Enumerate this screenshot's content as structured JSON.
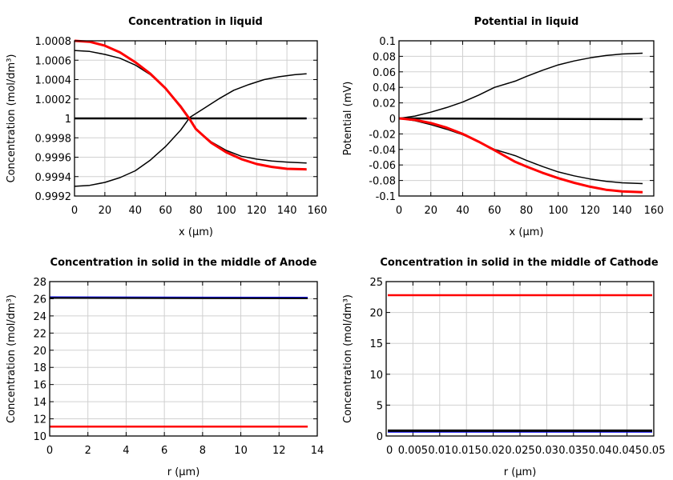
{
  "chart_data": [
    {
      "type": "line",
      "title": "Concentration in liquid",
      "xlabel": "x (µm)",
      "ylabel": "Concentration (mol/dm³)",
      "xlim": [
        0,
        160
      ],
      "ylim": [
        0.9992,
        1.0008
      ],
      "xticks": [
        "0",
        "20",
        "40",
        "60",
        "80",
        "100",
        "120",
        "140",
        "160"
      ],
      "xtick_values": [
        0,
        20,
        40,
        60,
        80,
        100,
        120,
        140,
        160
      ],
      "yticks": [
        "0.9992",
        "0.9994",
        "0.9996",
        "0.9998",
        "1",
        "1.0002",
        "1.0004",
        "1.0006",
        "1.0008"
      ],
      "ytick_values": [
        0.9992,
        0.9994,
        0.9996,
        0.9998,
        1,
        1.0002,
        1.0004,
        1.0006,
        1.0008
      ],
      "grid": true,
      "series": [
        {
          "color": "#0000ff",
          "width": 1.5,
          "x": [
            0,
            153
          ],
          "y": [
            1,
            1
          ]
        },
        {
          "color": "#000000",
          "width": 2.5,
          "x": [
            0,
            153
          ],
          "y": [
            1,
            1
          ]
        },
        {
          "color": "#000000",
          "width": 1.5,
          "x": [
            0,
            10,
            20,
            30,
            40,
            50,
            60,
            70,
            76,
            80,
            90,
            100,
            110,
            120,
            130,
            140,
            153
          ],
          "y": [
            1.0007,
            1.00069,
            1.00066,
            1.00062,
            1.00055,
            1.00045,
            1.00031,
            1.00013,
            1.0,
            0.99989,
            0.99976,
            0.99967,
            0.99961,
            0.99958,
            0.99956,
            0.99955,
            0.99954
          ]
        },
        {
          "color": "#000000",
          "width": 1.5,
          "x": [
            0,
            10,
            20,
            30,
            40,
            50,
            60,
            70,
            76,
            85,
            95,
            105,
            115,
            125,
            135,
            145,
            153
          ],
          "y": [
            0.9993,
            0.99931,
            0.99934,
            0.99939,
            0.99946,
            0.99957,
            0.99971,
            0.99988,
            1.00001,
            1.0001,
            1.0002,
            1.00029,
            1.00035,
            1.0004,
            1.00043,
            1.00045,
            1.00046
          ]
        },
        {
          "color": "#ff0000",
          "width": 3,
          "x": [
            0,
            10,
            20,
            30,
            40,
            50,
            60,
            70,
            76,
            80,
            90,
            100,
            110,
            120,
            130,
            140,
            153
          ],
          "y": [
            1.0008,
            1.00079,
            1.00075,
            1.00068,
            1.00058,
            1.00046,
            1.00031,
            1.00012,
            0.99999,
            0.99989,
            0.99975,
            0.99965,
            0.99958,
            0.99953,
            0.9995,
            0.99948,
            0.999475
          ]
        }
      ]
    },
    {
      "type": "line",
      "title": "Potential in liquid",
      "xlabel": "x (µm)",
      "ylabel": "Potential (mV)",
      "xlim": [
        0,
        160
      ],
      "ylim": [
        -0.1,
        0.1
      ],
      "xticks": [
        "0",
        "20",
        "40",
        "60",
        "80",
        "100",
        "120",
        "140",
        "160"
      ],
      "xtick_values": [
        0,
        20,
        40,
        60,
        80,
        100,
        120,
        140,
        160
      ],
      "yticks": [
        "-0.1",
        "-0.08",
        "-0.06",
        "-0.04",
        "-0.02",
        "0",
        "0.02",
        "0.04",
        "0.06",
        "0.08",
        "0.1"
      ],
      "ytick_values": [
        -0.1,
        -0.08,
        -0.06,
        -0.04,
        -0.02,
        0,
        0.02,
        0.04,
        0.06,
        0.08,
        0.1
      ],
      "grid": true,
      "series": [
        {
          "color": "#000000",
          "width": 2.5,
          "x": [
            0,
            153
          ],
          "y": [
            0,
            -0.001
          ]
        },
        {
          "color": "#000000",
          "width": 1.5,
          "x": [
            0,
            10,
            20,
            30,
            40,
            50,
            60,
            73,
            80,
            90,
            100,
            110,
            120,
            130,
            140,
            153
          ],
          "y": [
            0,
            0.003,
            0.008,
            0.014,
            0.021,
            0.03,
            0.04,
            0.048,
            0.054,
            0.062,
            0.069,
            0.074,
            0.078,
            0.081,
            0.083,
            0.084
          ]
        },
        {
          "color": "#000000",
          "width": 1.5,
          "x": [
            0,
            10,
            20,
            30,
            40,
            50,
            60,
            73,
            80,
            90,
            100,
            110,
            120,
            130,
            140,
            153
          ],
          "y": [
            0,
            -0.003,
            -0.008,
            -0.014,
            -0.021,
            -0.03,
            -0.04,
            -0.048,
            -0.054,
            -0.062,
            -0.069,
            -0.074,
            -0.078,
            -0.081,
            -0.083,
            -0.084
          ]
        },
        {
          "color": "#ff0000",
          "width": 3,
          "x": [
            0,
            10,
            20,
            30,
            40,
            50,
            60,
            73,
            80,
            90,
            100,
            110,
            120,
            130,
            140,
            153
          ],
          "y": [
            0,
            -0.002,
            -0.006,
            -0.012,
            -0.02,
            -0.03,
            -0.041,
            -0.056,
            -0.062,
            -0.07,
            -0.077,
            -0.083,
            -0.088,
            -0.092,
            -0.094,
            -0.095
          ]
        }
      ]
    },
    {
      "type": "line",
      "title": "Concentration in solid in the middle of Anode",
      "xlabel": "r (µm)",
      "ylabel": "Concentration (mol/dm³)",
      "xlim": [
        0,
        14
      ],
      "ylim": [
        10,
        28
      ],
      "xticks": [
        "0",
        "2",
        "4",
        "6",
        "8",
        "10",
        "12",
        "14"
      ],
      "xtick_values": [
        0,
        2,
        4,
        6,
        8,
        10,
        12,
        14
      ],
      "yticks": [
        "10",
        "12",
        "14",
        "16",
        "18",
        "20",
        "22",
        "24",
        "26",
        "28"
      ],
      "ytick_values": [
        10,
        12,
        14,
        16,
        18,
        20,
        22,
        24,
        26,
        28
      ],
      "grid": true,
      "series": [
        {
          "color": "#0000ff",
          "width": 1.5,
          "x": [
            0,
            13.5
          ],
          "y": [
            26.2,
            26.15
          ]
        },
        {
          "color": "#000000",
          "width": 2,
          "x": [
            0,
            13.5
          ],
          "y": [
            26.1,
            26.05
          ]
        },
        {
          "color": "#ff0000",
          "width": 2.5,
          "x": [
            0,
            13.5
          ],
          "y": [
            11.1,
            11.1
          ]
        }
      ]
    },
    {
      "type": "line",
      "title": "Concentration in solid in the middle of Cathode",
      "xlabel": "r (µm)",
      "ylabel": "Concentration (mol/dm³)",
      "xlim": [
        0,
        0.05
      ],
      "ylim": [
        0,
        25
      ],
      "xticks": [
        "0",
        "0.005",
        "0.01",
        "0.015",
        "0.02",
        "0.025",
        "0.03",
        "0.035",
        "0.04",
        "0.045",
        "0.05"
      ],
      "xtick_values": [
        0,
        0.005,
        0.01,
        0.015,
        0.02,
        0.025,
        0.03,
        0.035,
        0.04,
        0.045,
        0.05
      ],
      "yticks": [
        "0",
        "5",
        "10",
        "15",
        "20",
        "25"
      ],
      "ytick_values": [
        0,
        5,
        10,
        15,
        20,
        25
      ],
      "grid": true,
      "series": [
        {
          "color": "#0000ff",
          "width": 1.5,
          "x": [
            0.0003,
            0.0497
          ],
          "y": [
            0.65,
            0.65
          ]
        },
        {
          "color": "#000000",
          "width": 3,
          "x": [
            0.0003,
            0.0497
          ],
          "y": [
            0.85,
            0.85
          ]
        },
        {
          "color": "#ff0000",
          "width": 2.5,
          "x": [
            0.0003,
            0.0497
          ],
          "y": [
            22.8,
            22.8
          ]
        }
      ]
    }
  ]
}
